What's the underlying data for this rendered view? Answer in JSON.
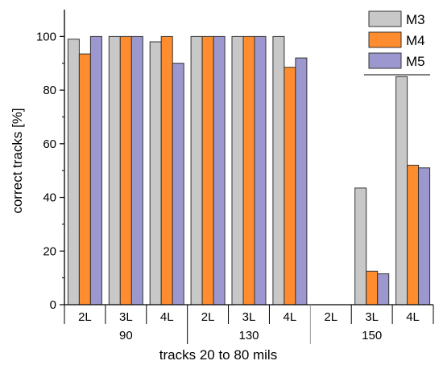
{
  "chart_data": {
    "type": "bar",
    "title": "",
    "xlabel": "tracks 20 to 80 mils",
    "ylabel": "correct tracks [%]",
    "ylim": [
      0,
      110
    ],
    "yticks": [
      0,
      20,
      40,
      60,
      80,
      100
    ],
    "grid": false,
    "legend_position": "top-right",
    "categories": [
      "2L",
      "3L",
      "4L",
      "2L",
      "3L",
      "4L",
      "2L",
      "3L",
      "4L"
    ],
    "groups": [
      {
        "label": "90",
        "categories": [
          "2L",
          "3L",
          "4L"
        ]
      },
      {
        "label": "130",
        "categories": [
          "2L",
          "3L",
          "4L"
        ]
      },
      {
        "label": "150",
        "categories": [
          "2L",
          "3L",
          "4L"
        ]
      }
    ],
    "series": [
      {
        "name": "M3",
        "color": "#c8c8c8",
        "values": [
          99,
          100,
          98,
          100,
          100,
          100,
          0,
          43.5,
          85
        ]
      },
      {
        "name": "M4",
        "color": "#ff8c2e",
        "values": [
          93.5,
          100,
          100,
          100,
          100,
          88.5,
          0,
          12.5,
          52
        ]
      },
      {
        "name": "M5",
        "color": "#9c98cf",
        "values": [
          100,
          100,
          90,
          100,
          100,
          92,
          0,
          11.5,
          51
        ]
      }
    ]
  }
}
